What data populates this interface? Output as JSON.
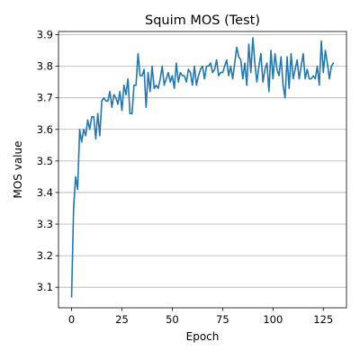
{
  "chart_data": {
    "type": "line",
    "title": "Squim MOS (Test)",
    "xlabel": "Epoch",
    "ylabel": "MOS value",
    "xlim": [
      -6.5,
      136.5
    ],
    "ylim": [
      3.035,
      3.91
    ],
    "xticks": [
      0,
      25,
      50,
      75,
      100,
      125
    ],
    "yticks": [
      3.1,
      3.2,
      3.3,
      3.4,
      3.5,
      3.6,
      3.7,
      3.8,
      3.9
    ],
    "grid": "y",
    "color": "#1f77b4",
    "series": [
      {
        "x": [
          0,
          1,
          2,
          3,
          4,
          5,
          6,
          7,
          8,
          9,
          10,
          11,
          12,
          13,
          14,
          15,
          16,
          17,
          18,
          19,
          20,
          21,
          22,
          23,
          24,
          25,
          26,
          27,
          28,
          29,
          30,
          31,
          32,
          33,
          34,
          35,
          36,
          37,
          38,
          39,
          40,
          41,
          42,
          43,
          44,
          45,
          46,
          47,
          48,
          49,
          50,
          51,
          52,
          53,
          54,
          55,
          56,
          57,
          58,
          59,
          60,
          61,
          62,
          63,
          64,
          65,
          66,
          67,
          68,
          69,
          70,
          71,
          72,
          73,
          74,
          75,
          76,
          77,
          78,
          79,
          80,
          81,
          82,
          83,
          84,
          85,
          86,
          87,
          88,
          89,
          90,
          91,
          92,
          93,
          94,
          95,
          96,
          97,
          98,
          99,
          100,
          101,
          102,
          103,
          104,
          105,
          106,
          107,
          108,
          109,
          110,
          111,
          112,
          113,
          114,
          115,
          116,
          117,
          118,
          119,
          120,
          121,
          122,
          123,
          124,
          125,
          126,
          127,
          128,
          129,
          130
        ],
        "values": [
          3.07,
          3.35,
          3.45,
          3.41,
          3.6,
          3.56,
          3.6,
          3.58,
          3.63,
          3.6,
          3.64,
          3.64,
          3.57,
          3.65,
          3.58,
          3.69,
          3.7,
          3.69,
          3.69,
          3.72,
          3.67,
          3.71,
          3.7,
          3.68,
          3.72,
          3.66,
          3.74,
          3.71,
          3.76,
          3.65,
          3.65,
          3.74,
          3.74,
          3.84,
          3.77,
          3.77,
          3.79,
          3.67,
          3.78,
          3.72,
          3.8,
          3.73,
          3.74,
          3.73,
          3.76,
          3.8,
          3.74,
          3.76,
          3.78,
          3.75,
          3.77,
          3.73,
          3.81,
          3.75,
          3.78,
          3.77,
          3.77,
          3.75,
          3.79,
          3.78,
          3.74,
          3.8,
          3.74,
          3.77,
          3.79,
          3.8,
          3.76,
          3.8,
          3.8,
          3.81,
          3.78,
          3.79,
          3.82,
          3.77,
          3.78,
          3.78,
          3.8,
          3.82,
          3.77,
          3.8,
          3.76,
          3.81,
          3.86,
          3.83,
          3.82,
          3.76,
          3.81,
          3.74,
          3.87,
          3.78,
          3.89,
          3.81,
          3.75,
          3.8,
          3.84,
          3.75,
          3.79,
          3.81,
          3.72,
          3.85,
          3.76,
          3.84,
          3.79,
          3.77,
          3.83,
          3.74,
          3.7,
          3.83,
          3.73,
          3.84,
          3.76,
          3.79,
          3.82,
          3.76,
          3.8,
          3.84,
          3.76,
          3.79,
          3.76,
          3.76,
          3.77,
          3.76,
          3.8,
          3.74,
          3.88,
          3.78,
          3.85,
          3.81,
          3.76,
          3.8,
          3.81
        ]
      }
    ]
  }
}
